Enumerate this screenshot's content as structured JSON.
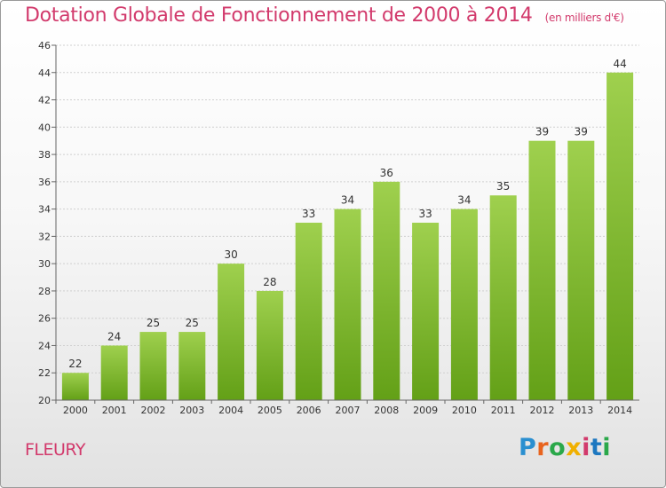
{
  "header": {
    "title": "Dotation Globale de Fonctionnement de 2000 à 2014",
    "subtitle": "(en milliers d'€)"
  },
  "footer": {
    "commune": "FLEURY",
    "logo_text": "Proxiti"
  },
  "colors": {
    "title": "#d23a6c",
    "bar_top": "#9fd04e",
    "bar_bottom": "#63a017"
  },
  "chart_data": {
    "type": "bar",
    "categories": [
      "2000",
      "2001",
      "2002",
      "2003",
      "2004",
      "2005",
      "2006",
      "2007",
      "2008",
      "2009",
      "2010",
      "2011",
      "2012",
      "2013",
      "2014"
    ],
    "values": [
      22,
      24,
      25,
      25,
      30,
      28,
      33,
      34,
      36,
      33,
      34,
      35,
      39,
      39,
      44
    ],
    "title": "Dotation Globale de Fonctionnement de 2000 à 2014",
    "subtitle": "(en milliers d'€)",
    "xlabel": "",
    "ylabel": "",
    "ylim": [
      20,
      46
    ],
    "yticks": [
      20,
      22,
      24,
      26,
      28,
      30,
      32,
      34,
      36,
      38,
      40,
      42,
      44,
      46
    ],
    "grid": true,
    "legend": "none"
  }
}
